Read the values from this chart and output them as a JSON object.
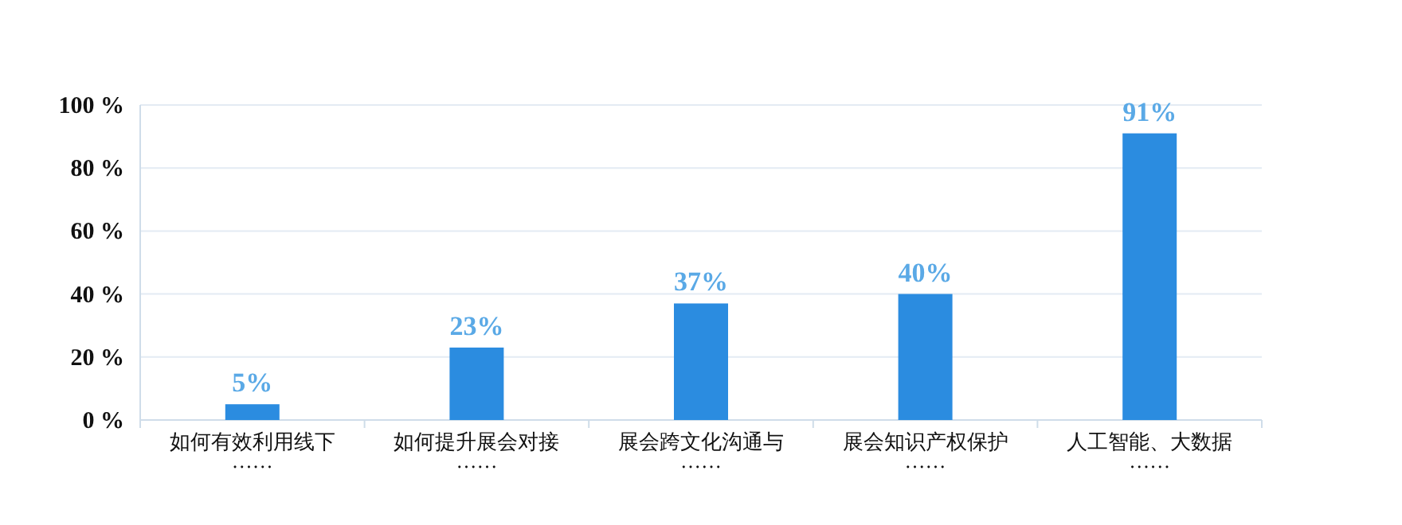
{
  "chart_data": {
    "type": "bar",
    "categories": [
      "如何有效利用线下……",
      "如何提升展会对接……",
      "展会跨文化沟通与……",
      "展会知识产权保护……",
      "人工智能、大数据……"
    ],
    "values": [
      5,
      23,
      37,
      40,
      91
    ],
    "value_labels": [
      "5%",
      "23%",
      "37%",
      "40%",
      "91%"
    ],
    "color": "#2b8ce0",
    "ylim": [
      0,
      100
    ],
    "yticks": [
      {
        "value": 0,
        "label": "0 %"
      },
      {
        "value": 20,
        "label": "20 %"
      },
      {
        "value": 40,
        "label": "40 %"
      },
      {
        "value": 60,
        "label": "60 %"
      },
      {
        "value": 80,
        "label": "80 %"
      },
      {
        "value": 100,
        "label": "100 %"
      }
    ],
    "grid": "y"
  }
}
